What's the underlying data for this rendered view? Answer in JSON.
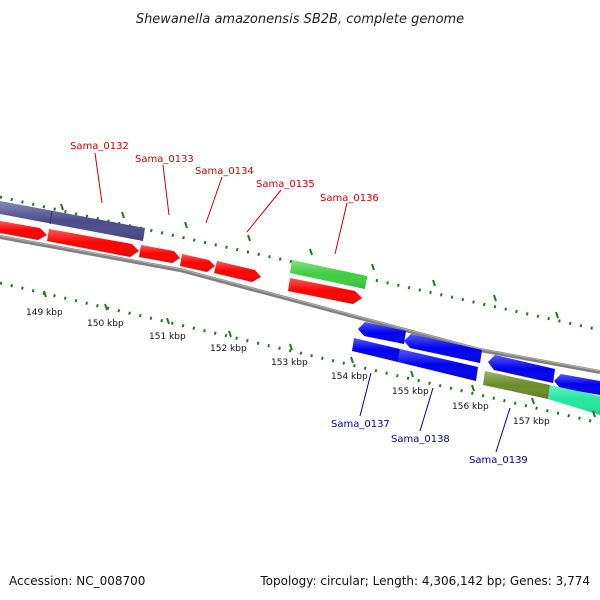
{
  "title": "Shewanella amazonensis SB2B, complete genome",
  "footer": {
    "accession": "Accession: NC_008700",
    "topology": "Topology: circular; Length: 4,306,142 bp; Genes: 3,774"
  },
  "scale_labels": [
    "149 kbp",
    "150 kbp",
    "151 kbp",
    "152 kbp",
    "153 kbp",
    "154 kbp",
    "155 kbp",
    "156 kbp",
    "157 kbp"
  ],
  "gene_labels_top": [
    "Sama_0132",
    "Sama_0133",
    "Sama_0134",
    "Sama_0135",
    "Sama_0136"
  ],
  "gene_labels_bottom": [
    "Sama_0137",
    "Sama_0138",
    "Sama_0139"
  ],
  "colors": {
    "forward_cds": "#ff0000",
    "reverse_cds": "#0000ee",
    "purple_feature": "#4b4b8c",
    "green_feature": "#3fcf3f",
    "olive_feature": "#6b8c2a",
    "teal_feature": "#22e8a0",
    "backbone": "#808080",
    "tick": "#1a7f1a",
    "top_label": "#cc0000",
    "bottom_label": "#000099"
  }
}
